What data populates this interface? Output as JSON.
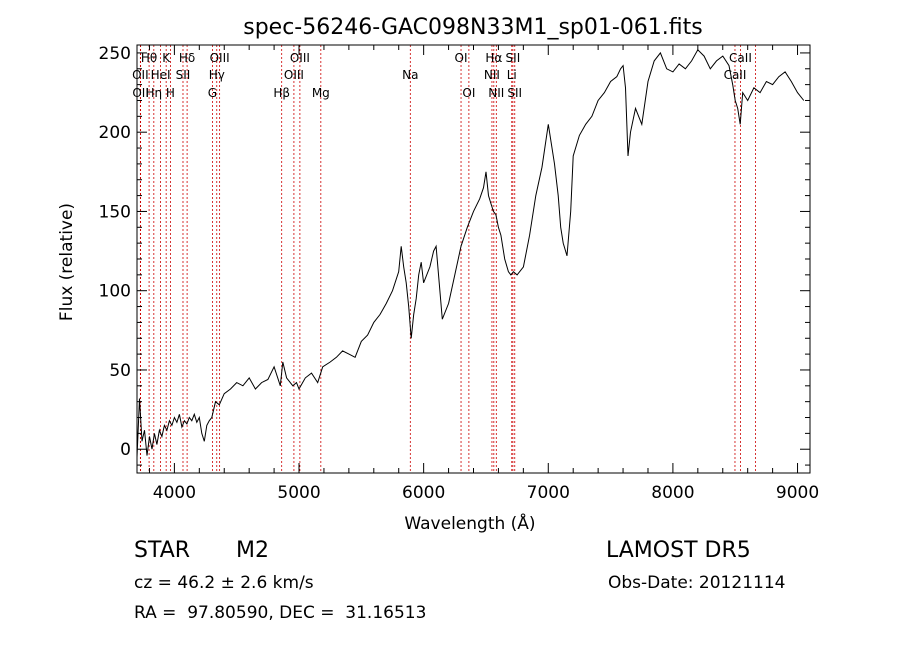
{
  "chart_data": {
    "type": "line",
    "title": "spec-56246-GAC098N33M1_sp01-061.fits",
    "xlabel": "Wavelength (Å)",
    "ylabel": "Flux (relative)",
    "xlim": [
      3700,
      9100
    ],
    "ylim": [
      -15,
      255
    ],
    "xticks": [
      4000,
      5000,
      6000,
      7000,
      8000,
      9000
    ],
    "yticks": [
      0,
      50,
      100,
      150,
      200,
      250
    ],
    "line_color": "#000000",
    "marker_color": "#cc0000",
    "series": [
      {
        "x": [
          3700,
          3720,
          3740,
          3760,
          3780,
          3800,
          3820,
          3840,
          3860,
          3880,
          3900,
          3920,
          3940,
          3960,
          3980,
          4000,
          4020,
          4040,
          4060,
          4080,
          4100,
          4120,
          4140,
          4160,
          4180,
          4200,
          4220,
          4240,
          4260,
          4280,
          4300,
          4330,
          4360,
          4400,
          4450,
          4500,
          4550,
          4600,
          4650,
          4700,
          4750,
          4800,
          4850,
          4870,
          4900,
          4950,
          4980,
          5000,
          5050,
          5100,
          5150,
          5190,
          5250,
          5300,
          5350,
          5400,
          5450,
          5500,
          5550,
          5600,
          5650,
          5700,
          5750,
          5800,
          5820,
          5840,
          5860,
          5880,
          5900,
          5920,
          5940,
          5960,
          5980,
          6000,
          6050,
          6080,
          6100,
          6150,
          6200,
          6250,
          6300,
          6350,
          6400,
          6450,
          6480,
          6500,
          6520,
          6540,
          6560,
          6580,
          6600,
          6620,
          6650,
          6680,
          6700,
          6720,
          6750,
          6800,
          6850,
          6900,
          6950,
          7000,
          7050,
          7080,
          7100,
          7120,
          7150,
          7180,
          7200,
          7250,
          7300,
          7350,
          7400,
          7450,
          7500,
          7550,
          7580,
          7600,
          7620,
          7640,
          7660,
          7700,
          7750,
          7800,
          7850,
          7900,
          7950,
          8000,
          8050,
          8100,
          8150,
          8200,
          8250,
          8300,
          8350,
          8400,
          8450,
          8480,
          8500,
          8520,
          8540,
          8560,
          8600,
          8650,
          8700,
          8750,
          8800,
          8850,
          8900,
          8950,
          9000,
          9050
        ],
        "y": [
          -5,
          32,
          5,
          12,
          -4,
          8,
          0,
          10,
          3,
          12,
          8,
          15,
          12,
          18,
          15,
          20,
          17,
          22,
          14,
          18,
          16,
          20,
          18,
          22,
          17,
          20,
          10,
          5,
          15,
          18,
          20,
          30,
          28,
          35,
          38,
          42,
          40,
          45,
          38,
          42,
          44,
          52,
          40,
          55,
          45,
          40,
          42,
          38,
          45,
          48,
          42,
          52,
          55,
          58,
          62,
          60,
          58,
          68,
          72,
          80,
          85,
          92,
          100,
          112,
          128,
          115,
          105,
          90,
          70,
          85,
          95,
          110,
          118,
          105,
          115,
          125,
          128,
          82,
          92,
          110,
          128,
          140,
          150,
          158,
          165,
          175,
          160,
          155,
          150,
          148,
          140,
          135,
          120,
          112,
          110,
          112,
          110,
          115,
          135,
          160,
          178,
          205,
          180,
          160,
          140,
          130,
          122,
          150,
          185,
          198,
          205,
          210,
          220,
          225,
          232,
          235,
          240,
          242,
          228,
          185,
          200,
          215,
          205,
          232,
          245,
          250,
          240,
          238,
          243,
          240,
          245,
          252,
          248,
          240,
          245,
          248,
          242,
          230,
          220,
          215,
          205,
          225,
          220,
          228,
          225,
          232,
          230,
          235,
          238,
          232,
          225,
          220
        ]
      }
    ],
    "lines": [
      {
        "label": "Hθ",
        "x": 3797,
        "row": 1
      },
      {
        "label": "K",
        "x": 3934,
        "row": 1
      },
      {
        "label": "Hδ",
        "x": 4102,
        "row": 1
      },
      {
        "label": "OIII",
        "x": 4363,
        "row": 1
      },
      {
        "label": "OIII",
        "x": 5007,
        "row": 1
      },
      {
        "label": "OI",
        "x": 6300,
        "row": 1
      },
      {
        "label": "Hα",
        "x": 6563,
        "row": 1
      },
      {
        "label": "SII",
        "x": 6716,
        "row": 1
      },
      {
        "label": "CaII",
        "x": 8542,
        "row": 1
      },
      {
        "label": "OII",
        "x": 3727,
        "row": 2
      },
      {
        "label": "HeI",
        "x": 3889,
        "row": 2
      },
      {
        "label": "SII",
        "x": 4069,
        "row": 2
      },
      {
        "label": "Hγ",
        "x": 4340,
        "row": 2
      },
      {
        "label": "OIII",
        "x": 4959,
        "row": 2
      },
      {
        "label": "Na",
        "x": 5893,
        "row": 2
      },
      {
        "label": "NII",
        "x": 6548,
        "row": 2
      },
      {
        "label": "Li",
        "x": 6707,
        "row": 2
      },
      {
        "label": "CaII",
        "x": 8498,
        "row": 2
      },
      {
        "label": "OII",
        "x": 3729,
        "row": 3
      },
      {
        "label": "Hη",
        "x": 3835,
        "row": 3
      },
      {
        "label": "H",
        "x": 3968,
        "row": 3
      },
      {
        "label": "G",
        "x": 4305,
        "row": 3
      },
      {
        "label": "Hβ",
        "x": 4861,
        "row": 3
      },
      {
        "label": "Mg",
        "x": 5175,
        "row": 3
      },
      {
        "label": "OI",
        "x": 6363,
        "row": 3
      },
      {
        "label": "NII",
        "x": 6583,
        "row": 3
      },
      {
        "label": "SII",
        "x": 6731,
        "row": 3
      },
      {
        "label": "",
        "x": 8662,
        "row": 3
      }
    ]
  },
  "info": {
    "obj_class": "STAR",
    "subclass": "M2",
    "survey": "LAMOST DR5",
    "cz": "cz = 46.2 ± 2.6 km/s",
    "obs_date": "Obs-Date: 20121114",
    "radec": "RA =  97.80590, DEC =  31.16513"
  }
}
